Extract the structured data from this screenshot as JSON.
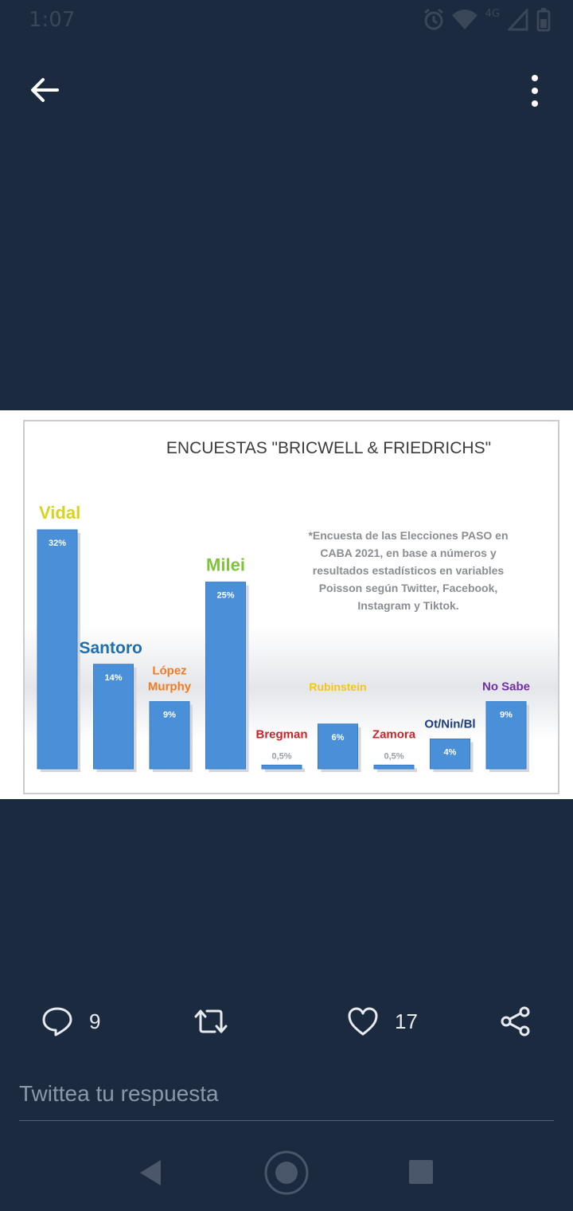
{
  "status_bar": {
    "time": "1:07",
    "network": "4G",
    "icons": [
      "alarm-icon",
      "wifi-icon",
      "signal-icon",
      "battery-icon"
    ]
  },
  "top_bar": {
    "back_icon": "arrow-left-icon",
    "menu_icon": "more-vertical-icon"
  },
  "chart_data": {
    "type": "bar",
    "title": "ENCUESTAS \"BRICWELL & FRIEDRICHS\"",
    "categories": [
      "Vidal",
      "Santoro",
      "López Murphy",
      "Milei",
      "Bregman",
      "Rubinstein",
      "Zamora",
      "Ot/Nin/Bl",
      "No Sabe"
    ],
    "value_labels": [
      "32%",
      "14%",
      "9%",
      "25%",
      "0,5%",
      "6%",
      "0,5%",
      "4%",
      "9%"
    ],
    "values": [
      32,
      14,
      9,
      25,
      0.5,
      6,
      0.5,
      4,
      9
    ],
    "category_colors": [
      "#d6d41e",
      "#1f6fb0",
      "#f07b22",
      "#7cc43a",
      "#c8252b",
      "#f5c518",
      "#c8252b",
      "#1d3e7a",
      "#7030a0"
    ],
    "bar_color": "#4a90d9",
    "annotation": "*Encuesta de las Elecciones PASO en CABA 2021, en base a números y resultados estadísticos en variables Poisson según Twitter, Facebook, Instagram y Tiktok.",
    "annotation_lines": [
      "*Encuesta de las Elecciones PASO en",
      "CABA 2021, en base a números y",
      "resultados estadísticos en variables",
      "Poisson según Twitter, Facebook,",
      "Instagram y Tiktok."
    ],
    "ylim": [
      0,
      32
    ],
    "grid": false
  },
  "actions": {
    "reply_count": "9",
    "like_count": "17",
    "icons": [
      "reply-icon",
      "retweet-icon",
      "like-icon",
      "share-icon"
    ]
  },
  "reply_box": {
    "placeholder": "Twittea tu respuesta"
  },
  "nav": {
    "icons": [
      "nav-back-icon",
      "nav-home-icon",
      "nav-recents-icon"
    ]
  },
  "colors": {
    "background": "#1c2a3f",
    "text": "#e7ebf0",
    "muted": "#8b98a9"
  }
}
